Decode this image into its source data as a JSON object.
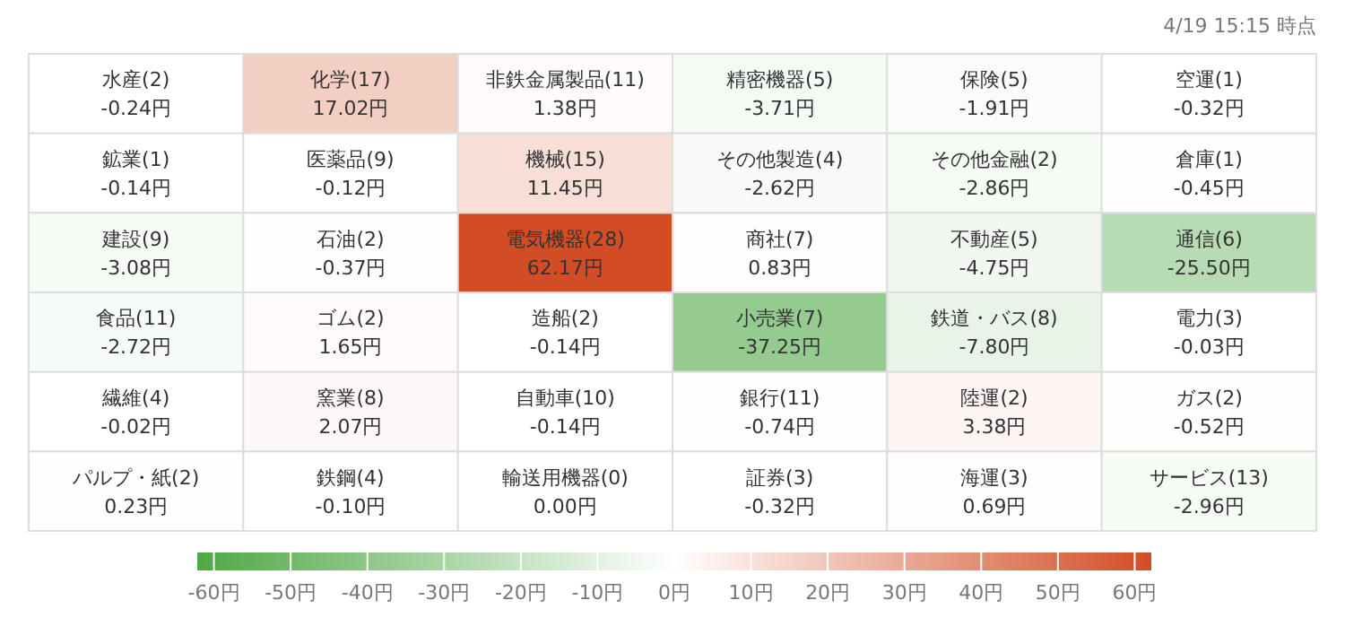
{
  "chart_data": {
    "type": "heatmap",
    "subtitle": "4/19 15:15 時点",
    "categories": [
      null,
      null,
      null,
      null,
      null,
      null
    ],
    "y_categories": [
      null,
      null,
      null,
      null,
      null,
      null
    ],
    "cells": [
      [
        -0.24,
        17.02,
        1.38,
        -3.71,
        -1.91,
        -0.32
      ],
      [
        -0.14,
        -0.12,
        11.45,
        -2.62,
        -2.86,
        -0.45
      ],
      [
        -3.08,
        -0.37,
        62.17,
        0.83,
        -4.75,
        -25.5
      ],
      [
        -2.72,
        1.65,
        -0.14,
        -37.25,
        -7.8,
        -0.03
      ],
      [
        -0.02,
        2.07,
        -0.14,
        -0.74,
        3.38,
        -0.52
      ],
      [
        0.23,
        -0.1,
        0.0,
        -0.32,
        0.69,
        -2.96
      ]
    ],
    "cell_labels": [
      [
        "水産(2)\n-0.24円",
        "化学(17)\n17.02円",
        "非鉄金属製品(11)\n1.38円",
        "精密機器(5)\n-3.71円",
        "保険(5)\n-1.91円",
        "空運(1)\n-0.32円"
      ],
      [
        "鉱業(1)\n-0.14円",
        "医薬品(9)\n-0.12円",
        "機械(15)\n11.45円",
        "その他製造(4)\n-2.62円",
        "その他金融(2)\n-2.86円",
        "倉庫(1)\n-0.45円"
      ],
      [
        "建設(9)\n-3.08円",
        "石油(2)\n-0.37円",
        "電気機器(28)\n62.17円",
        "商社(7)\n0.83円",
        "不動産(5)\n-4.75円",
        "通信(6)\n-25.50円"
      ],
      [
        "食品(11)\n-2.72円",
        "ゴム(2)\n1.65円",
        "造船(2)\n-0.14円",
        "小売業(7)\n-37.25円",
        "鉄道・バス(8)\n-7.80円",
        "電力(3)\n-0.03円"
      ],
      [
        "繊維(4)\n-0.02円",
        "窯業(8)\n2.07円",
        "自動車(10)\n-0.14円",
        "銀行(11)\n-0.74円",
        "陸運(2)\n3.38円",
        "ガス(2)\n-0.52円"
      ],
      [
        "パルプ・紙(2)\n0.23円",
        "鉄鋼(4)\n-0.10円",
        "輸送用機器(0)\n0.00円",
        "証券(3)\n-0.32円",
        "海運(3)\n0.69円",
        "サービス(13)\n-2.96円"
      ]
    ],
    "clim": [
      -62.17,
      62.17
    ],
    "cticks": [
      {
        "value": -60,
        "label": "-60円"
      },
      {
        "value": -50,
        "label": "-50円"
      },
      {
        "value": -40,
        "label": "-40円"
      },
      {
        "value": -30,
        "label": "-30円"
      },
      {
        "value": -20,
        "label": "-20円"
      },
      {
        "value": -10,
        "label": "-10円"
      },
      {
        "value": 0,
        "label": "0円"
      },
      {
        "value": 10,
        "label": "10円"
      },
      {
        "value": 20,
        "label": "20円"
      },
      {
        "value": 30,
        "label": "30円"
      },
      {
        "value": 40,
        "label": "40円"
      },
      {
        "value": 50,
        "label": "50円"
      },
      {
        "value": 60,
        "label": "60円"
      }
    ],
    "colors": [
      "#4fa845",
      "#ffffff",
      "#d24d25"
    ]
  }
}
